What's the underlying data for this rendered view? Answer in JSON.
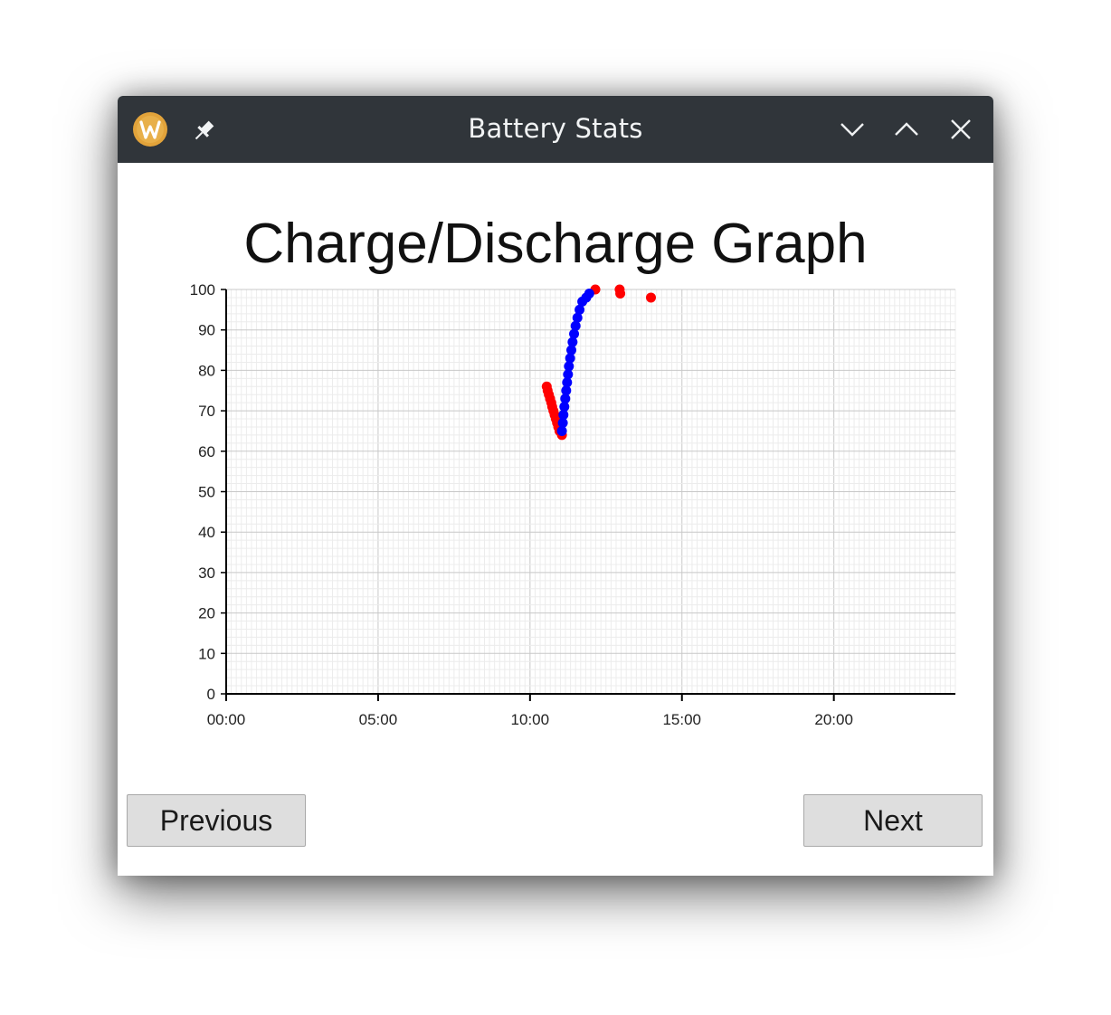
{
  "window": {
    "title": "Battery Stats",
    "app_icon": "wxwidgets-logo-icon",
    "pin_icon": "pin-icon",
    "controls": [
      "minimize-icon",
      "maximize-icon",
      "close-icon"
    ],
    "titlebar_color": "#30353a"
  },
  "buttons": {
    "previous_label": "Previous",
    "next_label": "Next"
  },
  "chart_data": {
    "type": "scatter",
    "title": "Charge/Discharge Graph",
    "xlabel": "",
    "ylabel": "",
    "x_unit": "hours",
    "xlim": [
      0,
      24
    ],
    "ylim": [
      0,
      100
    ],
    "x_ticks": [
      {
        "value": 0,
        "label": "00:00"
      },
      {
        "value": 5,
        "label": "05:00"
      },
      {
        "value": 10,
        "label": "10:00"
      },
      {
        "value": 15,
        "label": "15:00"
      },
      {
        "value": 20,
        "label": "20:00"
      }
    ],
    "y_ticks": [
      0,
      10,
      20,
      30,
      40,
      50,
      60,
      70,
      80,
      90,
      100
    ],
    "grid": true,
    "legend": "none",
    "series": [
      {
        "color": "#ff0000",
        "points": [
          {
            "x": 10.55,
            "y": 76
          },
          {
            "x": 10.58,
            "y": 75
          },
          {
            "x": 10.62,
            "y": 74
          },
          {
            "x": 10.66,
            "y": 73
          },
          {
            "x": 10.7,
            "y": 72
          },
          {
            "x": 10.73,
            "y": 71
          },
          {
            "x": 10.77,
            "y": 70
          },
          {
            "x": 10.81,
            "y": 69
          },
          {
            "x": 10.85,
            "y": 68
          },
          {
            "x": 10.89,
            "y": 67
          },
          {
            "x": 10.93,
            "y": 66
          },
          {
            "x": 10.97,
            "y": 65
          },
          {
            "x": 11.05,
            "y": 64
          },
          {
            "x": 12.15,
            "y": 100
          },
          {
            "x": 12.95,
            "y": 100
          },
          {
            "x": 12.97,
            "y": 99
          },
          {
            "x": 13.98,
            "y": 98
          }
        ]
      },
      {
        "color": "#0000ff",
        "points": [
          {
            "x": 11.05,
            "y": 65
          },
          {
            "x": 11.08,
            "y": 67
          },
          {
            "x": 11.1,
            "y": 69
          },
          {
            "x": 11.13,
            "y": 71
          },
          {
            "x": 11.16,
            "y": 73
          },
          {
            "x": 11.19,
            "y": 75
          },
          {
            "x": 11.22,
            "y": 77
          },
          {
            "x": 11.25,
            "y": 79
          },
          {
            "x": 11.28,
            "y": 81
          },
          {
            "x": 11.32,
            "y": 83
          },
          {
            "x": 11.36,
            "y": 85
          },
          {
            "x": 11.4,
            "y": 87
          },
          {
            "x": 11.45,
            "y": 89
          },
          {
            "x": 11.5,
            "y": 91
          },
          {
            "x": 11.56,
            "y": 93
          },
          {
            "x": 11.63,
            "y": 95
          },
          {
            "x": 11.72,
            "y": 97
          },
          {
            "x": 11.85,
            "y": 98
          },
          {
            "x": 11.95,
            "y": 99
          }
        ]
      }
    ]
  }
}
